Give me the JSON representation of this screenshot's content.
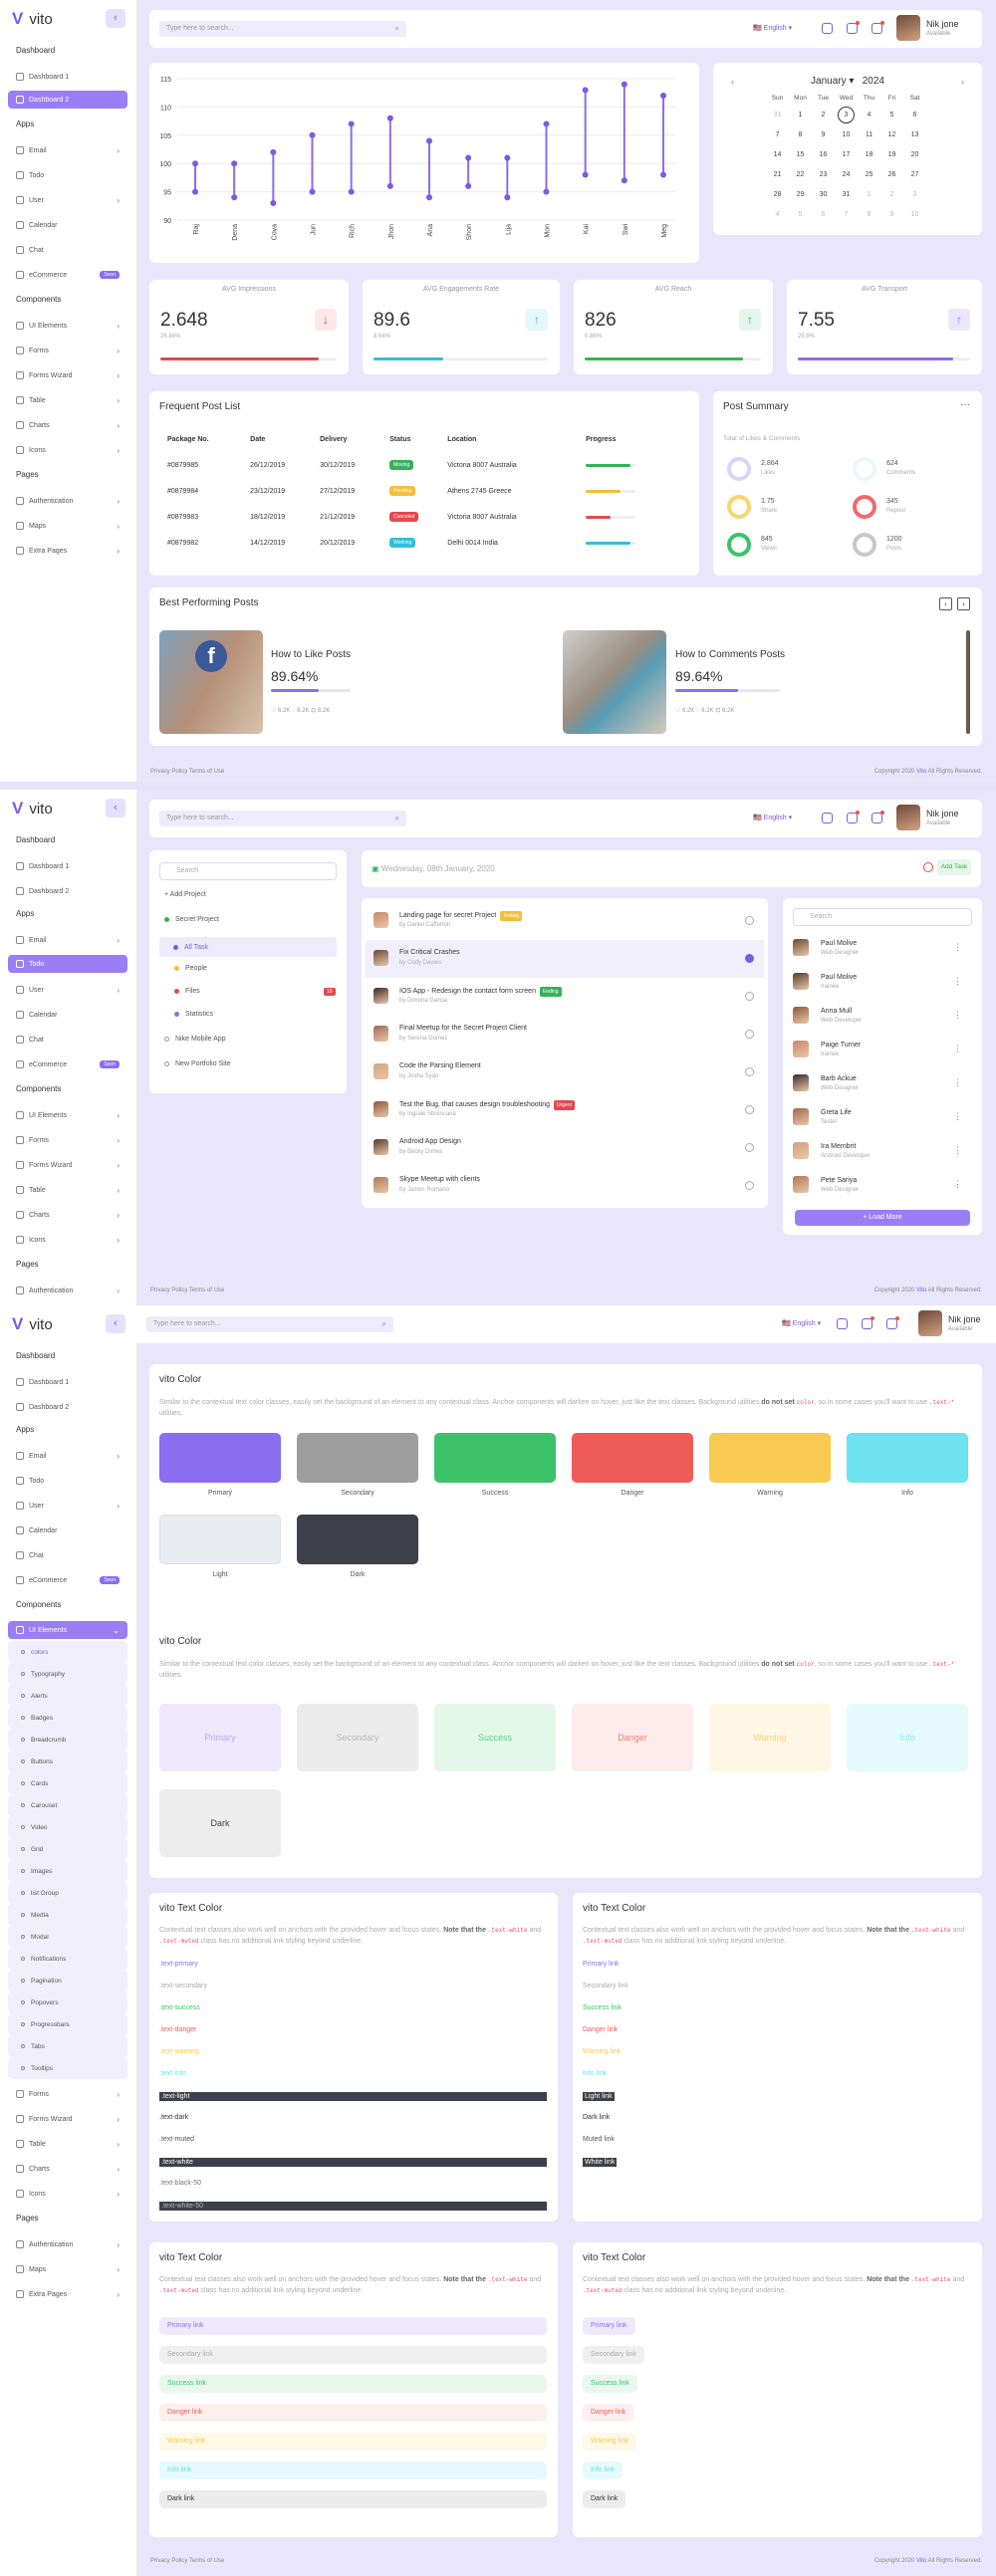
{
  "brand": {
    "name": "vito",
    "accent": "#7a5ae8"
  },
  "sidebar": {
    "sections": {
      "dashboard": "Dashboard",
      "apps": "Apps",
      "components": "Components",
      "pages": "Pages"
    },
    "items": {
      "dashboard1": "Dashboard 1",
      "dashboard2": "Dashboard 2",
      "email": "Email",
      "todo": "Todo",
      "user": "User",
      "calendar": "Calendar",
      "chat": "Chat",
      "ecommerce": "eCommerce",
      "ecommerce_badge": "Soon",
      "ui": "UI Elements",
      "forms": "Forms",
      "wizard": "Forms Wizard",
      "table": "Table",
      "charts": "Charts",
      "icons": "Icons",
      "auth": "Authentication",
      "maps": "Maps",
      "extra": "Extra Pages"
    },
    "ui_sub": [
      "colors",
      "Typography",
      "Alerts",
      "Badges",
      "Breadcrumb",
      "Buttons",
      "Cards",
      "Carousel",
      "Video",
      "Grid",
      "Images",
      "list Group",
      "Media",
      "Modal",
      "Notifications",
      "Pagination",
      "Popovers",
      "Progressbars",
      "Tabs",
      "Tooltips"
    ]
  },
  "topbar": {
    "search_placeholder": "Type here to search...",
    "lang": "English",
    "user_name": "Nik jone",
    "user_status": "Available"
  },
  "chart_data": {
    "type": "dumbbell",
    "categories": [
      "Raj",
      "Dena",
      "Cova",
      "Jun",
      "Rich",
      "Jhon",
      "Ana",
      "Shon",
      "Lija",
      "Mon",
      "Kai",
      "Swi",
      "Meg"
    ],
    "series": [
      {
        "name": "high",
        "values": [
          100,
          100,
          102,
          105,
          107,
          108,
          104,
          101,
          101,
          107,
          113,
          114,
          112
        ]
      },
      {
        "name": "low",
        "values": [
          95,
          94,
          93,
          95,
          95,
          96,
          94,
          96,
          94,
          95,
          98,
          97,
          98
        ]
      }
    ],
    "ylim": [
      90,
      115
    ],
    "yticks": [
      90,
      95,
      100,
      105,
      110,
      115
    ]
  },
  "calendar": {
    "month": "January",
    "year": "2024",
    "days": [
      "Sun",
      "Mon",
      "Tue",
      "Wed",
      "Thu",
      "Fri",
      "Sat"
    ],
    "weeks": [
      [
        "31",
        "1",
        "2",
        "3",
        "4",
        "5",
        "6"
      ],
      [
        "7",
        "8",
        "9",
        "10",
        "11",
        "12",
        "13"
      ],
      [
        "14",
        "15",
        "16",
        "17",
        "18",
        "19",
        "20"
      ],
      [
        "21",
        "22",
        "23",
        "24",
        "25",
        "26",
        "27"
      ],
      [
        "28",
        "29",
        "30",
        "31",
        "1",
        "2",
        "3"
      ],
      [
        "4",
        "5",
        "6",
        "7",
        "8",
        "9",
        "10"
      ]
    ]
  },
  "stats": [
    {
      "label": "AVG Impressions",
      "value": "2.648",
      "sub": "26.84%",
      "arrow": "↓",
      "color": "#e5484d",
      "bg": "#fde8e9",
      "pct": 0.9
    },
    {
      "label": "AVG Engagements Rate",
      "value": "89.6",
      "sub": "8.64%",
      "arrow": "↑",
      "color": "#2fc1d6",
      "bg": "#e2f8fb",
      "pct": 0.4
    },
    {
      "label": "AVG Reach",
      "value": "826",
      "sub": "0.86%",
      "arrow": "↑",
      "color": "#34b35a",
      "bg": "#e3f7e8",
      "pct": 0.9
    },
    {
      "label": "AVG Transport",
      "value": "7.55",
      "sub": "25.9%",
      "arrow": "↑",
      "color": "#8a6ef0",
      "bg": "#ece6fd",
      "pct": 0.9
    }
  ],
  "posts": {
    "title": "Frequent Post List",
    "headers": [
      "Package No.",
      "Date",
      "Delivery",
      "Status",
      "Location",
      "Progress"
    ],
    "rows": [
      [
        "#0879985",
        "26/12/2019",
        "30/12/2019",
        "Moving",
        "Victoria 8007 Australia"
      ],
      [
        "#0879984",
        "23/12/2019",
        "27/12/2019",
        "Pending",
        "Athens 2745 Greece"
      ],
      [
        "#0879983",
        "18/12/2019",
        "21/12/2019",
        "Canceled",
        "Victoria 8007 Australia"
      ],
      [
        "#0879982",
        "14/12/2019",
        "20/12/2019",
        "Working",
        "Delhi 0014 India"
      ]
    ],
    "status_colors": [
      "#34b35a",
      "#f5bd3a",
      "#e5484d",
      "#2fc1d6"
    ],
    "progress": [
      0.9,
      0.7,
      0.5,
      0.9
    ]
  },
  "summary": {
    "title": "Post Summary",
    "subtitle": "Total of Likes & Comments",
    "items": [
      {
        "num": "2,864",
        "lbl": "Likes",
        "color": "#dcd3fb"
      },
      {
        "num": "624",
        "lbl": "Comments",
        "color": "#e6f8f7"
      },
      {
        "num": "1.75",
        "lbl": "Share",
        "color": "#f9d56a"
      },
      {
        "num": "345",
        "lbl": "Repost",
        "color": "#ef6a6f"
      },
      {
        "num": "845",
        "lbl": "Views",
        "color": "#3cc36a"
      },
      {
        "num": "1200",
        "lbl": "Posts",
        "color": "#c8c8c8"
      }
    ]
  },
  "best": {
    "title": "Best Performing Posts",
    "items": [
      {
        "t": "How to Like Posts",
        "p": "89.64%",
        "m": "♡ 6.2K  ◌ 6.2K  ⊡ 6.2K"
      },
      {
        "t": "How to Comments Posts",
        "p": "89.64%",
        "m": "♡ 6.2K  ◌ 6.2K  ⊡ 6.2K"
      }
    ]
  },
  "footer": {
    "links": "Privacy Policy   Terms of Use",
    "copy_pre": "Copyright 2020 ",
    "copy_brand": "Vito",
    "copy_post": " All Rights Reserved."
  },
  "todo": {
    "search": "Search",
    "add_project": "+ Add Project",
    "secret": "Secret Project",
    "menu": [
      {
        "l": "All Task",
        "c": "#7a5ae8"
      },
      {
        "l": "People",
        "c": "#f5bd3a"
      },
      {
        "l": "Files",
        "c": "#e5484d"
      },
      {
        "l": "Statistics",
        "c": "#8a6ef0"
      }
    ],
    "files_badge": "10",
    "other": [
      "Nike Mobile App",
      "New Portfolio Site"
    ],
    "date": "Wednesday, 08th January, 2020",
    "add_task": "Add Task",
    "tasks": [
      {
        "t": "Landing page for secret Project",
        "by": "by Danlel Cafferton",
        "tag": "Testing",
        "tc": "#f5bd3a",
        "on": false
      },
      {
        "t": "Fix Critical Crashes",
        "by": "by Cody Davies",
        "tag": "",
        "tc": "",
        "on": true
      },
      {
        "t": "IOS App - Redesign the contact form screen",
        "by": "by Dimona Garcia",
        "tag": "Ending",
        "tc": "#34b35a",
        "on": false
      },
      {
        "t": "Final Meetup for the Secret Project Client",
        "by": "by Serena Gomez",
        "tag": "",
        "tc": "",
        "on": false
      },
      {
        "t": "Code the Parsing Element",
        "by": "by Josha Syan",
        "tag": "",
        "tc": "",
        "on": false
      },
      {
        "t": "Test the Bug, that causes design troubleshooting",
        "by": "by Ingrale Sbrescana",
        "tag": "Urgent",
        "tc": "#e5484d",
        "on": false
      },
      {
        "t": "Android App Design",
        "by": "by Becky Dimes",
        "tag": "",
        "tc": "",
        "on": false
      },
      {
        "t": "Skype Meetup with clients",
        "by": "by James Romano",
        "tag": "",
        "tc": "",
        "on": false
      }
    ],
    "people": [
      {
        "n": "Paul Molive",
        "r": "Web Designer"
      },
      {
        "n": "Paul Molive",
        "r": "trainee"
      },
      {
        "n": "Anna Mull",
        "r": "Web Developer"
      },
      {
        "n": "Paige Turner",
        "r": "trainee"
      },
      {
        "n": "Barb Ackue",
        "r": "Web Designer"
      },
      {
        "n": "Greta Life",
        "r": "Tester"
      },
      {
        "n": "Ira Membrit",
        "r": "Android Developer"
      },
      {
        "n": "Pete Sariya",
        "r": "Web Designer"
      }
    ],
    "load_more": "Load More"
  },
  "colors": {
    "title": "vito Color",
    "desc1": "Similar to the contextual text color classes, easily set the background of an element to any contextual class. Anchor components will darken on hover, just like the text classes. Background utilities ",
    "desc_b": "do not set",
    "desc_code": "color",
    "desc2": ", so in some cases you'll want to use ",
    "desc_code2": ".text-*",
    "desc3": " utilities.",
    "swatches": [
      {
        "l": "Primary",
        "c": "#8a6ef0",
        "lc": "#eee9fd",
        "lt": "#b9a6f5"
      },
      {
        "l": "Secondary",
        "c": "#9e9e9e",
        "lc": "#ececec",
        "lt": "#b5b5b5"
      },
      {
        "l": "Success",
        "c": "#3cc36a",
        "lc": "#e4f8ea",
        "lt": "#5fcf85"
      },
      {
        "l": "Danger",
        "c": "#ef5b57",
        "lc": "#fdeceb",
        "lt": "#ef7a76"
      },
      {
        "l": "Warning",
        "c": "#f9ca52",
        "lc": "#fef7e3",
        "lt": "#f7d37a"
      },
      {
        "l": "Info",
        "c": "#6ce3ee",
        "lc": "#e4fafc",
        "lt": "#8ee8f1"
      },
      {
        "l": "Light",
        "c": "#e9edf2",
        "lc": "",
        "lt": ""
      },
      {
        "l": "Dark",
        "c": "#3d3f4a",
        "lc": "#ededed",
        "lt": "#444"
      }
    ]
  },
  "textcolor": {
    "title": "vito Text Color",
    "desc": "Contextual text classes also work well on anchors with the provided hover and focus states. ",
    "desc_b": "Note that the ",
    "desc_code": ".text-white",
    "desc_m": " and ",
    "desc_code2": ".text-muted",
    "desc_e": " class has no additional link styling beyond underline.",
    "left": [
      ".text-primary",
      ".text-secondary",
      ".text-success",
      ".text-danger",
      ".text-warning",
      ".text-info",
      ".text-light",
      ".text-dark",
      ".text-muted",
      ".text-white",
      ".text-black-50",
      ".text-white-50"
    ],
    "right": [
      "Primary link",
      "Secondary link",
      "Success link",
      "Danger link",
      "Warning link",
      "Info link",
      "Light link",
      "Dark link",
      "Muted link",
      "White link"
    ],
    "lcolors": [
      "#8a6ef0",
      "#aaa",
      "#3cc36a",
      "#ef5b57",
      "#f9ca52",
      "#6ce3ee",
      "#fff",
      "#333",
      "#555",
      "#fff",
      "#777",
      "#bbb"
    ],
    "lbg": [
      "",
      "",
      "",
      "",
      "",
      "",
      "#3d3f4a",
      "",
      "",
      "#3d3f4a",
      "",
      "#3d3f4a"
    ],
    "links": [
      "Primary link",
      "Secondary link",
      "Success link",
      "Danger link",
      "Warning link",
      "Info link",
      "Dark link"
    ],
    "linkc": [
      "#8a6ef0",
      "#aaa",
      "#3cc36a",
      "#ef5b57",
      "#f9ca52",
      "#6ce3ee",
      "#333"
    ],
    "linkbg": [
      "#eee9fd",
      "#efefef",
      "#e8f8ed",
      "#fdefee",
      "#fef8e6",
      "#e5fafc",
      "#ececec"
    ]
  }
}
